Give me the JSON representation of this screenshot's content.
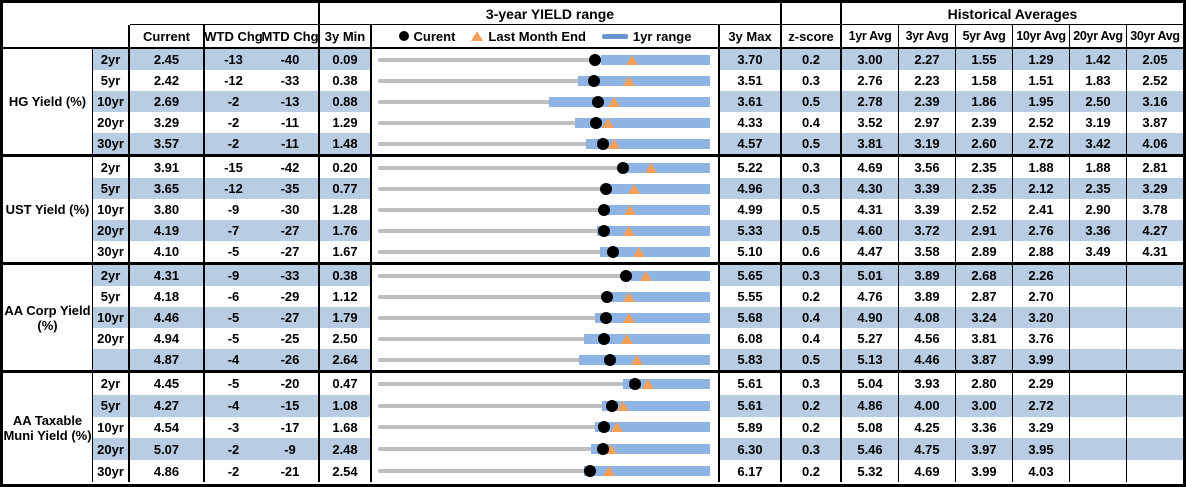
{
  "header": {
    "top": {
      "yield_range_title": "3-year YIELD range",
      "historical_title": "Historical Averages"
    },
    "cols": {
      "current": "Current",
      "wtd": "WTD Chg",
      "mtd": "MTD Chg",
      "min3y": "3y Min",
      "max3y": "3y Max",
      "zscore": "z-score",
      "avgs": [
        "1yr Avg",
        "3yr Avg",
        "5yr Avg",
        "10yr Avg",
        "20yr Avg",
        "30yr Avg"
      ]
    },
    "legend": {
      "current": "Curent",
      "last_month": "Last Month End",
      "range": "1yr range"
    }
  },
  "colors": {
    "band_blue": "#B8CCE4",
    "bar_blue": "#8DB4E2",
    "legend_bar_blue": "#6A94CC",
    "track_gray": "#BFBFBF",
    "marker_orange": "#F7A05A",
    "dot_black": "#000000",
    "border_black": "#000000"
  },
  "chart_data": {
    "type": "table",
    "note": "Each row also depicts a bullet chart: gray track spans 3y Min..3y Max, blue bar = 1yr range, black dot = current, orange triangle = last month end.",
    "groups": [
      {
        "label": "HG Yield (%)",
        "rows": [
          {
            "tenor": "2yr",
            "current": "2.45",
            "wtd": "-13",
            "mtd": "-40",
            "min": "0.09",
            "max": "3.70",
            "z": "0.2",
            "avgs": [
              "3.00",
              "2.27",
              "1.55",
              "1.29",
              "1.42",
              "2.05"
            ],
            "last_month_end": 2.85,
            "yr1_lo": 2.52,
            "yr1_hi": 3.7
          },
          {
            "tenor": "5yr",
            "current": "2.42",
            "wtd": "-12",
            "mtd": "-33",
            "min": "0.38",
            "max": "3.51",
            "z": "0.3",
            "avgs": [
              "2.76",
              "2.23",
              "1.58",
              "1.51",
              "1.83",
              "2.52"
            ],
            "last_month_end": 2.75,
            "yr1_lo": 2.27,
            "yr1_hi": 3.51
          },
          {
            "tenor": "10yr",
            "current": "2.69",
            "wtd": "-2",
            "mtd": "-13",
            "min": "0.88",
            "max": "3.61",
            "z": "0.5",
            "avgs": [
              "2.78",
              "2.39",
              "1.86",
              "1.95",
              "2.50",
              "3.16"
            ],
            "last_month_end": 2.82,
            "yr1_lo": 2.29,
            "yr1_hi": 3.61
          },
          {
            "tenor": "20yr",
            "current": "3.29",
            "wtd": "-2",
            "mtd": "-11",
            "min": "1.29",
            "max": "4.33",
            "z": "0.4",
            "avgs": [
              "3.52",
              "2.97",
              "2.39",
              "2.52",
              "3.19",
              "3.87"
            ],
            "last_month_end": 3.4,
            "yr1_lo": 3.09,
            "yr1_hi": 4.33
          },
          {
            "tenor": "30yr",
            "current": "3.57",
            "wtd": "-2",
            "mtd": "-11",
            "min": "1.48",
            "max": "4.57",
            "z": "0.5",
            "avgs": [
              "3.81",
              "3.19",
              "2.60",
              "2.72",
              "3.42",
              "4.06"
            ],
            "last_month_end": 3.68,
            "yr1_lo": 3.42,
            "yr1_hi": 4.57
          }
        ]
      },
      {
        "label": "UST Yield (%)",
        "rows": [
          {
            "tenor": "2yr",
            "current": "3.91",
            "wtd": "-15",
            "mtd": "-42",
            "min": "0.20",
            "max": "5.22",
            "z": "0.3",
            "avgs": [
              "4.69",
              "3.56",
              "2.35",
              "1.88",
              "1.88",
              "2.81"
            ],
            "last_month_end": 4.33,
            "yr1_lo": 3.9,
            "yr1_hi": 5.22
          },
          {
            "tenor": "5yr",
            "current": "3.65",
            "wtd": "-12",
            "mtd": "-35",
            "min": "0.77",
            "max": "4.96",
            "z": "0.3",
            "avgs": [
              "4.30",
              "3.39",
              "2.35",
              "2.12",
              "2.35",
              "3.29"
            ],
            "last_month_end": 4.0,
            "yr1_lo": 3.66,
            "yr1_hi": 4.96
          },
          {
            "tenor": "10yr",
            "current": "3.80",
            "wtd": "-9",
            "mtd": "-30",
            "min": "1.28",
            "max": "4.99",
            "z": "0.5",
            "avgs": [
              "4.31",
              "3.39",
              "2.52",
              "2.41",
              "2.90",
              "3.78"
            ],
            "last_month_end": 4.1,
            "yr1_lo": 3.82,
            "yr1_hi": 4.99
          },
          {
            "tenor": "20yr",
            "current": "4.19",
            "wtd": "-7",
            "mtd": "-27",
            "min": "1.76",
            "max": "5.33",
            "z": "0.5",
            "avgs": [
              "4.60",
              "3.72",
              "2.91",
              "2.76",
              "3.36",
              "4.27"
            ],
            "last_month_end": 4.46,
            "yr1_lo": 4.12,
            "yr1_hi": 5.33
          },
          {
            "tenor": "30yr",
            "current": "4.10",
            "wtd": "-5",
            "mtd": "-27",
            "min": "1.67",
            "max": "5.10",
            "z": "0.6",
            "avgs": [
              "4.47",
              "3.58",
              "2.89",
              "2.88",
              "3.49",
              "4.31"
            ],
            "last_month_end": 4.37,
            "yr1_lo": 3.96,
            "yr1_hi": 5.1
          }
        ]
      },
      {
        "label": "AA Corp Yield (%)",
        "rows": [
          {
            "tenor": "2yr",
            "current": "4.31",
            "wtd": "-9",
            "mtd": "-33",
            "min": "0.38",
            "max": "5.65",
            "z": "0.3",
            "avgs": [
              "5.01",
              "3.89",
              "2.68",
              "2.26",
              "",
              ""
            ],
            "last_month_end": 4.64,
            "yr1_lo": 4.4,
            "yr1_hi": 5.65
          },
          {
            "tenor": "5yr",
            "current": "4.18",
            "wtd": "-6",
            "mtd": "-29",
            "min": "1.12",
            "max": "5.55",
            "z": "0.2",
            "avgs": [
              "4.76",
              "3.89",
              "2.87",
              "2.70",
              "",
              ""
            ],
            "last_month_end": 4.47,
            "yr1_lo": 4.12,
            "yr1_hi": 5.55
          },
          {
            "tenor": "10yr",
            "current": "4.46",
            "wtd": "-5",
            "mtd": "-27",
            "min": "1.79",
            "max": "5.68",
            "z": "0.4",
            "avgs": [
              "4.90",
              "4.08",
              "3.24",
              "3.20",
              "",
              ""
            ],
            "last_month_end": 4.73,
            "yr1_lo": 4.33,
            "yr1_hi": 5.68
          },
          {
            "tenor": "20yr",
            "current": "4.94",
            "wtd": "-5",
            "mtd": "-25",
            "min": "2.50",
            "max": "6.08",
            "z": "0.4",
            "avgs": [
              "5.27",
              "4.56",
              "3.81",
              "3.76",
              "",
              ""
            ],
            "last_month_end": 5.19,
            "yr1_lo": 4.72,
            "yr1_hi": 6.08
          },
          {
            "tenor": "",
            "current": "4.87",
            "wtd": "-4",
            "mtd": "-26",
            "min": "2.64",
            "max": "5.83",
            "z": "0.5",
            "avgs": [
              "5.13",
              "4.46",
              "3.87",
              "3.99",
              "",
              ""
            ],
            "last_month_end": 5.13,
            "yr1_lo": 4.57,
            "yr1_hi": 5.83
          }
        ]
      },
      {
        "label": "AA Taxable Muni Yield (%)",
        "rows": [
          {
            "tenor": "2yr",
            "current": "4.45",
            "wtd": "-5",
            "mtd": "-20",
            "min": "0.47",
            "max": "5.61",
            "z": "0.3",
            "avgs": [
              "5.04",
              "3.93",
              "2.80",
              "2.29",
              "",
              ""
            ],
            "last_month_end": 4.65,
            "yr1_lo": 4.27,
            "yr1_hi": 5.61
          },
          {
            "tenor": "5yr",
            "current": "4.27",
            "wtd": "-4",
            "mtd": "-15",
            "min": "1.08",
            "max": "5.61",
            "z": "0.2",
            "avgs": [
              "4.86",
              "4.00",
              "3.00",
              "2.72",
              "",
              ""
            ],
            "last_month_end": 4.42,
            "yr1_lo": 4.13,
            "yr1_hi": 5.61
          },
          {
            "tenor": "10yr",
            "current": "4.54",
            "wtd": "-3",
            "mtd": "-17",
            "min": "1.68",
            "max": "5.89",
            "z": "0.2",
            "avgs": [
              "5.08",
              "4.25",
              "3.36",
              "3.29",
              "",
              ""
            ],
            "last_month_end": 4.71,
            "yr1_lo": 4.43,
            "yr1_hi": 5.89
          },
          {
            "tenor": "20yr",
            "current": "5.07",
            "wtd": "-2",
            "mtd": "-9",
            "min": "2.48",
            "max": "6.30",
            "z": "0.3",
            "avgs": [
              "5.46",
              "4.75",
              "3.97",
              "3.95",
              "",
              ""
            ],
            "last_month_end": 5.16,
            "yr1_lo": 4.93,
            "yr1_hi": 6.3
          },
          {
            "tenor": "30yr",
            "current": "4.86",
            "wtd": "-2",
            "mtd": "-21",
            "min": "2.54",
            "max": "6.17",
            "z": "0.2",
            "avgs": [
              "5.32",
              "4.69",
              "3.99",
              "4.03",
              "",
              ""
            ],
            "last_month_end": 5.07,
            "yr1_lo": 4.79,
            "yr1_hi": 6.17
          }
        ]
      }
    ]
  }
}
